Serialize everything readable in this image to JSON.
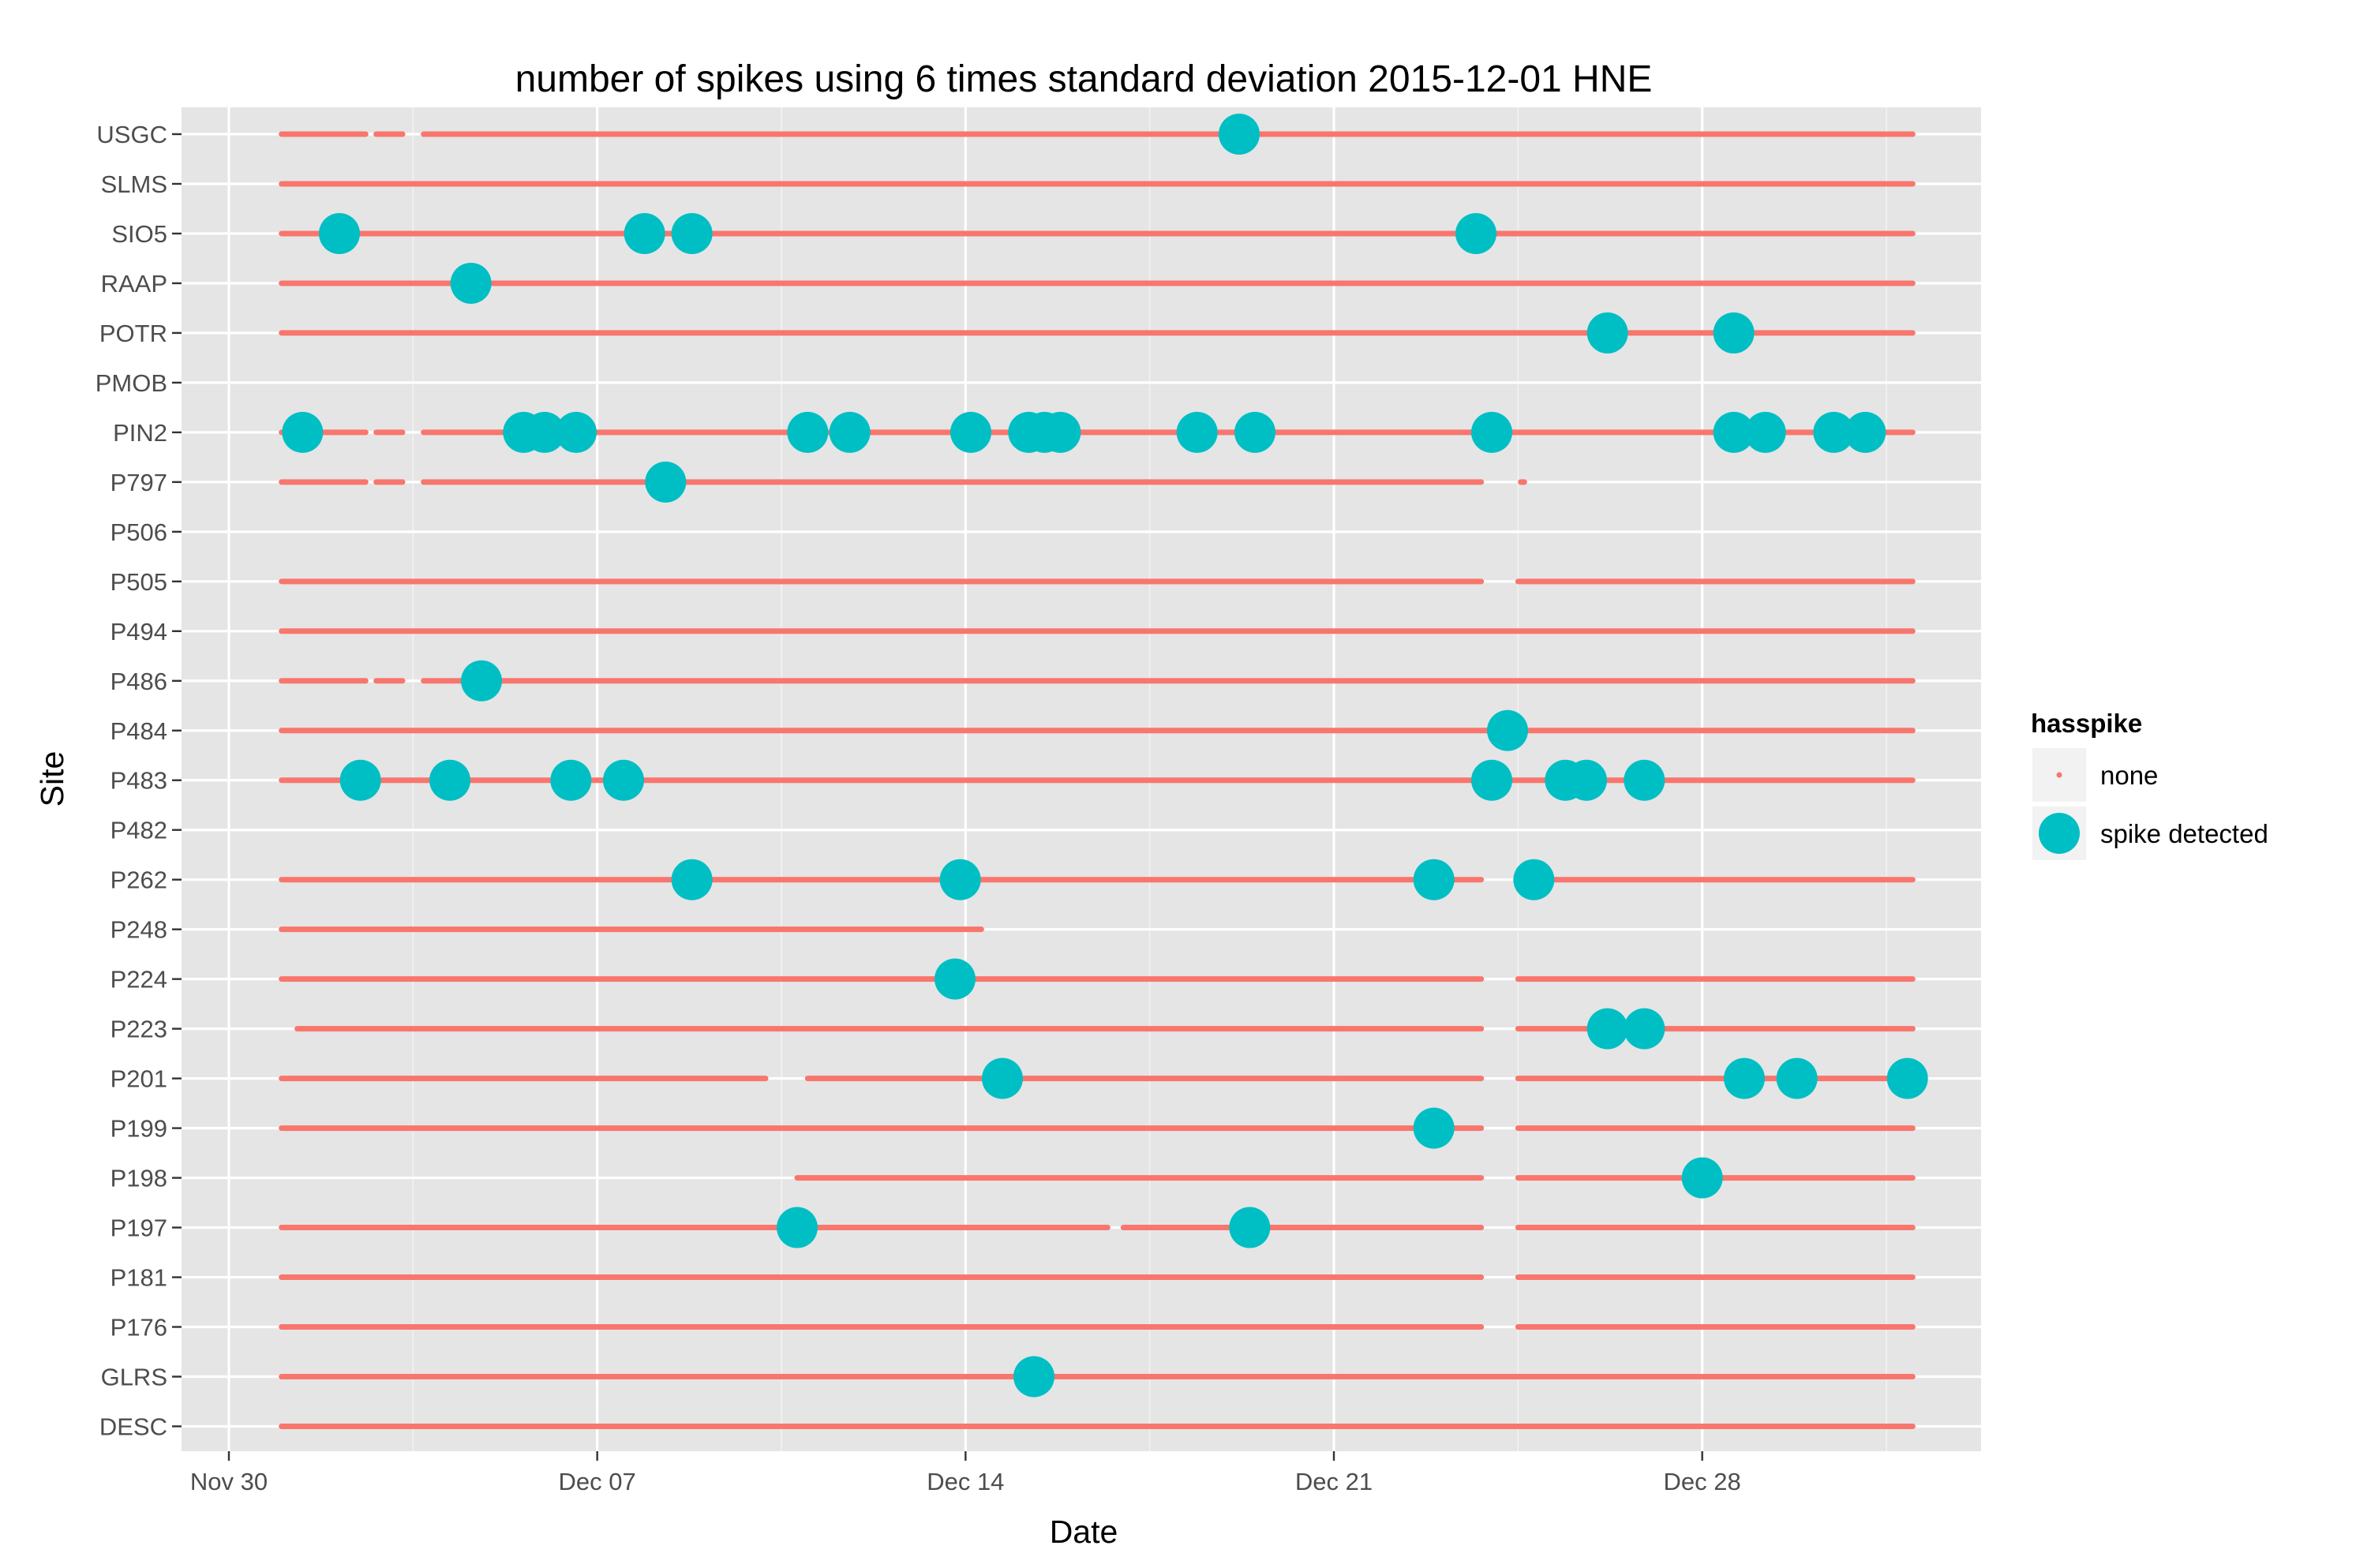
{
  "chart_data": {
    "type": "scatter",
    "title": "number of spikes using  6 times standard deviation 2015-12-01 HNE",
    "xlabel": "Date",
    "ylabel": "Site",
    "x_ticks": [
      "Nov 30",
      "Dec 07",
      "Dec 14",
      "Dec 21",
      "Dec 28"
    ],
    "x_tick_values": [
      0,
      7,
      14,
      21,
      28
    ],
    "xlim": [
      -0.9,
      33.3
    ],
    "x_unit": "days since Nov 30 2015",
    "categories": [
      "USGC",
      "SLMS",
      "SIO5",
      "RAAP",
      "POTR",
      "PMOB",
      "PIN2",
      "P797",
      "P506",
      "P505",
      "P494",
      "P486",
      "P484",
      "P483",
      "P482",
      "P262",
      "P248",
      "P224",
      "P223",
      "P201",
      "P199",
      "P198",
      "P197",
      "P181",
      "P176",
      "GLRS",
      "DESC"
    ],
    "legend": {
      "title": "hasspike",
      "position": "right",
      "entries": [
        {
          "label": "none",
          "color": "#F8766D",
          "shape": "small point"
        },
        {
          "label": "spike detected",
          "color": "#00BFC4",
          "shape": "large point"
        }
      ]
    },
    "grid": true,
    "panel_background": "#E5E5E5",
    "none_segments": {
      "USGC": [
        [
          1,
          2.6
        ],
        [
          2.8,
          3.3
        ],
        [
          3.7,
          32
        ]
      ],
      "SLMS": [
        [
          1,
          32
        ]
      ],
      "SIO5": [
        [
          1,
          32
        ]
      ],
      "RAAP": [
        [
          1,
          32
        ]
      ],
      "POTR": [
        [
          1,
          32
        ]
      ],
      "PMOB": [],
      "PIN2": [
        [
          1,
          2.6
        ],
        [
          2.8,
          3.3
        ],
        [
          3.7,
          32
        ]
      ],
      "P797": [
        [
          1,
          2.6
        ],
        [
          2.8,
          3.3
        ],
        [
          3.7,
          23.8
        ],
        [
          24.55,
          24.62
        ]
      ],
      "P506": [],
      "P505": [
        [
          1,
          23.8
        ],
        [
          24.5,
          32
        ]
      ],
      "P494": [
        [
          1,
          32
        ]
      ],
      "P486": [
        [
          1,
          2.6
        ],
        [
          2.8,
          3.3
        ],
        [
          3.7,
          32
        ]
      ],
      "P484": [
        [
          1,
          32
        ]
      ],
      "P483": [
        [
          1,
          32
        ]
      ],
      "P482": [],
      "P262": [
        [
          1,
          23.8
        ],
        [
          24.5,
          32
        ]
      ],
      "P248": [
        [
          1,
          14.3
        ]
      ],
      "P224": [
        [
          1,
          23.8
        ],
        [
          24.5,
          32
        ]
      ],
      "P223": [
        [
          1.3,
          23.8
        ],
        [
          24.5,
          32
        ]
      ],
      "P201": [
        [
          1,
          10.2
        ],
        [
          11,
          23.8
        ],
        [
          24.5,
          32
        ]
      ],
      "P199": [
        [
          1,
          23.8
        ],
        [
          24.5,
          32
        ]
      ],
      "P198": [
        [
          10.8,
          23.8
        ],
        [
          24.5,
          32
        ]
      ],
      "P197": [
        [
          1,
          16.7
        ],
        [
          17,
          23.8
        ],
        [
          24.5,
          32
        ]
      ],
      "P181": [
        [
          1,
          23.8
        ],
        [
          24.5,
          32
        ]
      ],
      "P176": [
        [
          1,
          23.8
        ],
        [
          24.5,
          32
        ]
      ],
      "GLRS": [
        [
          1,
          32
        ]
      ],
      "DESC": [
        [
          1,
          32
        ]
      ]
    },
    "spike_points": [
      {
        "site": "USGC",
        "x": 19.2
      },
      {
        "site": "SIO5",
        "x": 2.1
      },
      {
        "site": "SIO5",
        "x": 7.9
      },
      {
        "site": "SIO5",
        "x": 8.8
      },
      {
        "site": "SIO5",
        "x": 23.7
      },
      {
        "site": "RAAP",
        "x": 4.6
      },
      {
        "site": "POTR",
        "x": 26.2
      },
      {
        "site": "POTR",
        "x": 28.6
      },
      {
        "site": "PIN2",
        "x": 1.4
      },
      {
        "site": "PIN2",
        "x": 5.6
      },
      {
        "site": "PIN2",
        "x": 6.0
      },
      {
        "site": "PIN2",
        "x": 6.6
      },
      {
        "site": "PIN2",
        "x": 11.0
      },
      {
        "site": "PIN2",
        "x": 11.8
      },
      {
        "site": "PIN2",
        "x": 14.1
      },
      {
        "site": "PIN2",
        "x": 15.2
      },
      {
        "site": "PIN2",
        "x": 15.5
      },
      {
        "site": "PIN2",
        "x": 15.8
      },
      {
        "site": "PIN2",
        "x": 18.4
      },
      {
        "site": "PIN2",
        "x": 19.5
      },
      {
        "site": "PIN2",
        "x": 24.0
      },
      {
        "site": "PIN2",
        "x": 28.6
      },
      {
        "site": "PIN2",
        "x": 29.2
      },
      {
        "site": "PIN2",
        "x": 30.5
      },
      {
        "site": "PIN2",
        "x": 31.1
      },
      {
        "site": "P797",
        "x": 8.3
      },
      {
        "site": "P486",
        "x": 4.8
      },
      {
        "site": "P484",
        "x": 24.3
      },
      {
        "site": "P483",
        "x": 2.5
      },
      {
        "site": "P483",
        "x": 4.2
      },
      {
        "site": "P483",
        "x": 6.5
      },
      {
        "site": "P483",
        "x": 7.5
      },
      {
        "site": "P483",
        "x": 24.0
      },
      {
        "site": "P483",
        "x": 25.4
      },
      {
        "site": "P483",
        "x": 25.8
      },
      {
        "site": "P483",
        "x": 26.9
      },
      {
        "site": "P262",
        "x": 8.8
      },
      {
        "site": "P262",
        "x": 13.9
      },
      {
        "site": "P262",
        "x": 22.9
      },
      {
        "site": "P262",
        "x": 24.8
      },
      {
        "site": "P224",
        "x": 13.8
      },
      {
        "site": "P223",
        "x": 26.2
      },
      {
        "site": "P223",
        "x": 26.9
      },
      {
        "site": "P201",
        "x": 14.7
      },
      {
        "site": "P201",
        "x": 28.8
      },
      {
        "site": "P201",
        "x": 29.8
      },
      {
        "site": "P201",
        "x": 31.9
      },
      {
        "site": "P199",
        "x": 22.9
      },
      {
        "site": "P198",
        "x": 28.0
      },
      {
        "site": "P197",
        "x": 10.8
      },
      {
        "site": "P197",
        "x": 19.4
      },
      {
        "site": "GLRS",
        "x": 15.3
      }
    ]
  }
}
